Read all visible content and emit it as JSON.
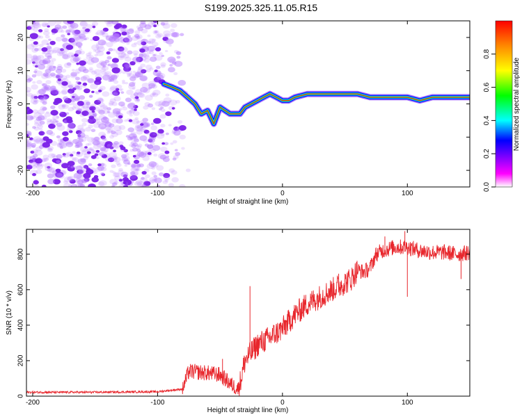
{
  "title": "S199.2025.325.11.05.R15",
  "colors": {
    "series": "#e8262c",
    "axis": "#000000",
    "scatter": "#8a2be2",
    "colormap": [
      "#ffffff",
      "#ff00ff",
      "#0000ff",
      "#00ffff",
      "#00ff00",
      "#ffff00",
      "#ff8800",
      "#ff0000"
    ]
  },
  "chart_data": [
    {
      "type": "heatmap",
      "panel": "spectrogram",
      "xlabel": "Height of straight line (km)",
      "ylabel": "Frequency (Hz)",
      "xlim": [
        -205,
        150
      ],
      "ylim": [
        -25,
        25
      ],
      "xticks": [
        -200,
        -100,
        0,
        100
      ],
      "yticks": [
        -20,
        -10,
        0,
        10,
        20
      ],
      "ridge": {
        "x": [
          -95,
          -88,
          -82,
          -76,
          -70,
          -65,
          -60,
          -55,
          -50,
          -46,
          -42,
          -38,
          -34,
          -30,
          -25,
          -20,
          -15,
          -10,
          -5,
          0,
          5,
          10,
          20,
          30,
          40,
          50,
          60,
          70,
          80,
          90,
          100,
          110,
          120,
          130,
          140,
          150
        ],
        "y": [
          6,
          5,
          4,
          2,
          0,
          -3,
          -2,
          -6,
          -1,
          -2,
          -3,
          -3,
          -3,
          -1,
          0,
          1,
          2,
          3,
          2,
          1,
          1,
          2,
          3,
          3,
          3,
          3,
          3,
          2,
          2,
          2,
          2,
          1,
          2,
          2,
          2,
          2
        ]
      },
      "colorbar": {
        "label": "Normalized spectral amplitude",
        "min": 0,
        "max": 1,
        "ticks": [
          0.0,
          0.2,
          0.4,
          0.6,
          0.8
        ]
      }
    },
    {
      "type": "line",
      "panel": "snr",
      "xlabel": "Height of straight line (km)",
      "ylabel": "SNR (10 * v/v)",
      "xlim": [
        -205,
        150
      ],
      "ylim": [
        0,
        940
      ],
      "xticks": [
        -200,
        -100,
        0,
        100
      ],
      "yticks": [
        0,
        200,
        400,
        600,
        800
      ],
      "series": [
        {
          "name": "SNR",
          "trend_x": [
            -205,
            -150,
            -100,
            -80,
            -75,
            -60,
            -50,
            -40,
            -35,
            -30,
            -20,
            -10,
            0,
            10,
            20,
            30,
            40,
            50,
            55,
            60,
            65,
            70,
            75,
            80,
            90,
            100,
            110,
            120,
            130,
            140,
            150
          ],
          "trend_y": [
            22,
            22,
            25,
            40,
            140,
            130,
            120,
            60,
            40,
            200,
            290,
            330,
            380,
            460,
            520,
            560,
            600,
            640,
            660,
            710,
            700,
            720,
            800,
            820,
            840,
            840,
            820,
            810,
            810,
            800,
            810
          ],
          "spikes": [
            [
              -48,
              210
            ],
            [
              -35,
              80
            ],
            [
              -26,
              620
            ],
            [
              45,
              690
            ],
            [
              82,
              900
            ],
            [
              98,
              930
            ],
            [
              100,
              560
            ],
            [
              143,
              660
            ]
          ]
        }
      ]
    }
  ]
}
